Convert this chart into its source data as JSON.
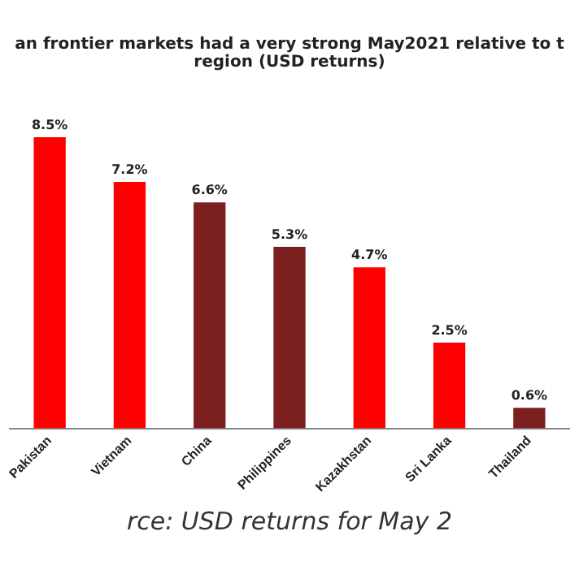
{
  "chart_data": {
    "type": "bar",
    "title": "an frontier markets had a very strong May2021 relative to t region (USD returns)",
    "categories": [
      "Pakistan",
      "Vietnam",
      "China",
      "Philippines",
      "Kazakhstan",
      "Sri Lanka",
      "Thailand"
    ],
    "values": [
      8.5,
      7.2,
      6.6,
      5.3,
      4.7,
      2.5,
      0.6
    ],
    "value_labels": [
      "8.5%",
      "7.2%",
      "6.6%",
      "5.3%",
      "4.7%",
      "2.5%",
      "0.6%"
    ],
    "colors": [
      "#ff0000",
      "#ff0000",
      "#7b1f1f",
      "#7b1f1f",
      "#ff0000",
      "#ff0000",
      "#7b1f1f"
    ],
    "annotations": [
      "rce: USD returns for May 2"
    ],
    "grid": false,
    "legend": false
  }
}
